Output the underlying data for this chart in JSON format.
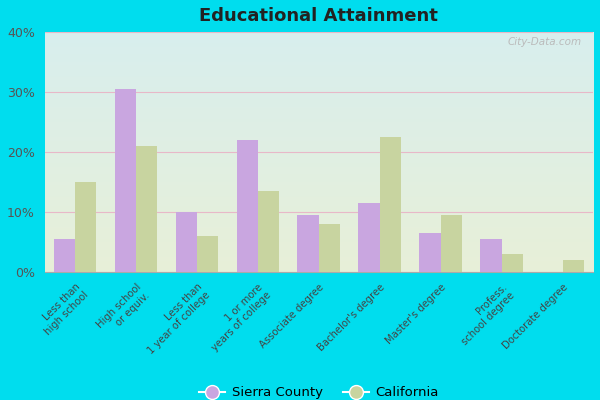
{
  "title": "Educational Attainment",
  "categories": [
    "Less than\nhigh school",
    "High school\nor equiv.",
    "Less than\n1 year of college",
    "1 or more\nyears of college",
    "Associate degree",
    "Bachelor's degree",
    "Master's degree",
    "Profess.\nschool degree",
    "Doctorate degree"
  ],
  "sierra_county": [
    5.5,
    30.5,
    10.0,
    22.0,
    9.5,
    11.5,
    6.5,
    5.5,
    0.0
  ],
  "california": [
    15.0,
    21.0,
    6.0,
    13.5,
    8.0,
    22.5,
    9.5,
    3.0,
    2.0
  ],
  "sierra_color": "#c9a6e0",
  "california_color": "#c8d4a0",
  "ylim": [
    0,
    40
  ],
  "yticks": [
    0,
    10,
    20,
    30,
    40
  ],
  "ytick_labels": [
    "0%",
    "10%",
    "20%",
    "30%",
    "40%"
  ],
  "legend_labels": [
    "Sierra County",
    "California"
  ],
  "watermark": "City-Data.com",
  "fig_bg": "#00ddee",
  "plot_bg_top": "#d8eeee",
  "plot_bg_bottom": "#e8f0d8",
  "grid_color": "#e8b8c8",
  "bar_width": 0.35
}
